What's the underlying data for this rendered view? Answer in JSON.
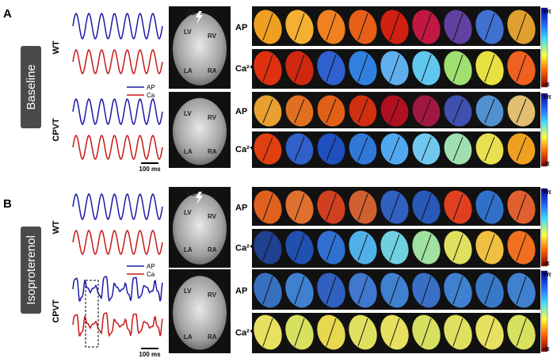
{
  "panels": [
    {
      "label": "A",
      "condition": "Baseline",
      "legend": {
        "ap": "AP",
        "ca": "Ca"
      },
      "scale_bar": "100 ms",
      "rows": [
        {
          "genotype": "WT",
          "heart_labels": [
            "ES",
            "LV",
            "RV",
            "LA",
            "RA"
          ],
          "map_labels": [
            "AP",
            "Ca²⁺"
          ],
          "colorbar": [
            "+π",
            "-π"
          ]
        },
        {
          "genotype": "CPVT",
          "heart_labels": [
            "LV",
            "RV",
            "LA",
            "RA"
          ],
          "map_labels": [
            "AP",
            "Ca²⁺"
          ],
          "colorbar": [
            "+π",
            "-π"
          ]
        }
      ]
    },
    {
      "label": "B",
      "condition": "Isoproterenol",
      "legend": {
        "ap": "AP",
        "ca": "Ca"
      },
      "scale_bar": "100 ms",
      "rows": [
        {
          "genotype": "WT",
          "heart_labels": [
            "ES",
            "LV",
            "RV",
            "LA",
            "RA"
          ],
          "map_labels": [
            "AP",
            "Ca²⁺"
          ],
          "colorbar": [
            "+π",
            "-π"
          ]
        },
        {
          "genotype": "CPVT",
          "heart_labels": [
            "LV",
            "RV",
            "LA",
            "RA"
          ],
          "map_labels": [
            "AP",
            "Ca²⁺"
          ],
          "colorbar": [
            "+π",
            "-π"
          ]
        }
      ]
    }
  ]
}
